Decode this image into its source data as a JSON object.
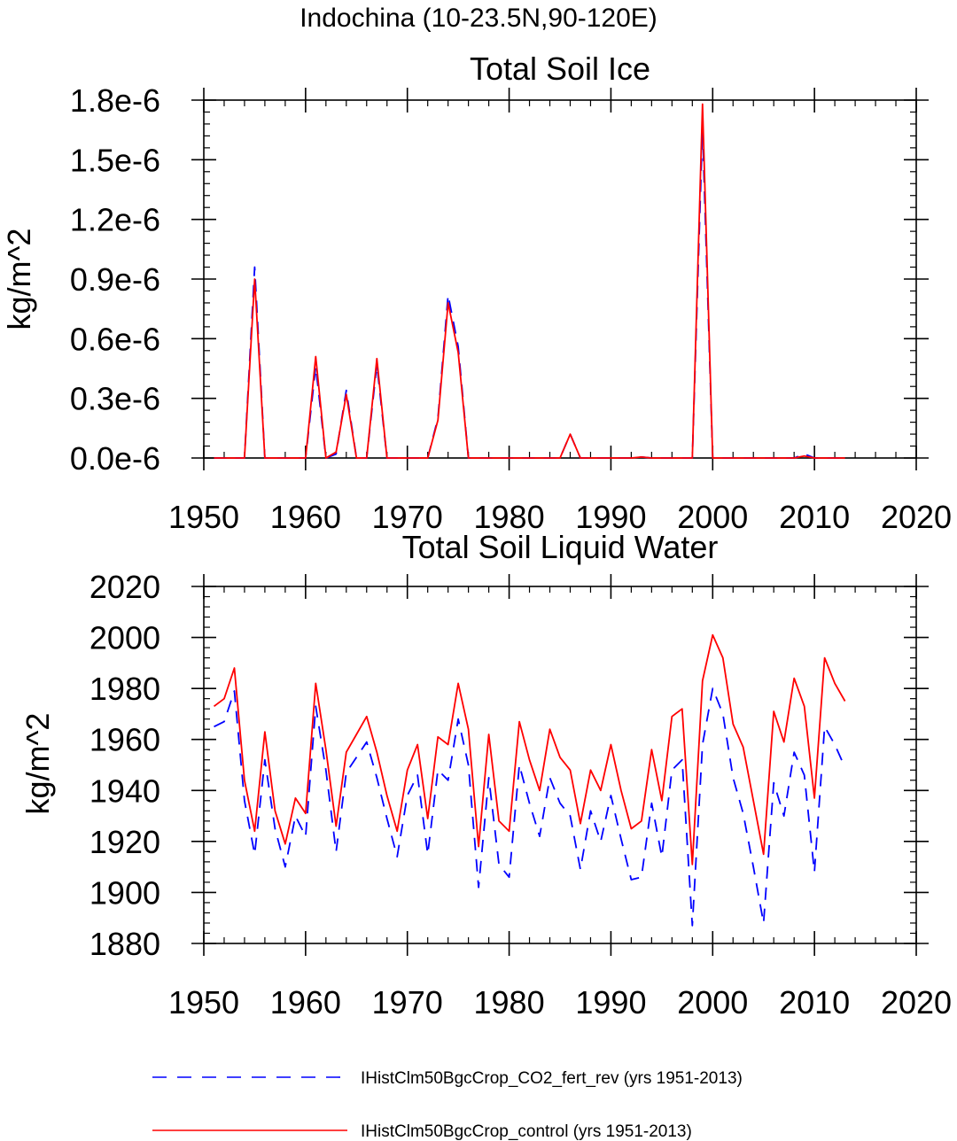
{
  "figure_title": "Indochina (10-23.5N,90-120E)",
  "legend": {
    "entries": [
      {
        "label": "IHistClm50BgcCrop_CO2_fert_rev (yrs 1951-2013)",
        "color": "#0000ff",
        "dash": "dashed"
      },
      {
        "label": "IHistClm50BgcCrop_control (yrs 1951-2013)",
        "color": "#ff0000",
        "dash": "solid"
      }
    ]
  },
  "chart_data": [
    {
      "type": "line",
      "title": "Total Soil Ice",
      "xlabel": "",
      "ylabel": "kg/m^2",
      "xlim": [
        1950,
        2020
      ],
      "ylim": [
        0,
        1.8e-06
      ],
      "xticks": [
        1950,
        1960,
        1970,
        1980,
        1990,
        2000,
        2010,
        2020
      ],
      "xtick_labels": [
        "1950",
        "1960",
        "1970",
        "1980",
        "1990",
        "2000",
        "2010",
        "2020"
      ],
      "yticks": [
        0,
        3e-07,
        6e-07,
        9e-07,
        1.2e-06,
        1.5e-06,
        1.8e-06
      ],
      "ytick_labels": [
        "0.0e-6",
        "0.3e-6",
        "0.6e-6",
        "0.9e-6",
        "1.2e-6",
        "1.5e-6",
        "1.8e-6"
      ],
      "grid": false,
      "x": [
        1951,
        1952,
        1953,
        1954,
        1955,
        1956,
        1957,
        1958,
        1959,
        1960,
        1961,
        1962,
        1963,
        1964,
        1965,
        1966,
        1967,
        1968,
        1969,
        1970,
        1971,
        1972,
        1973,
        1974,
        1975,
        1976,
        1977,
        1978,
        1979,
        1980,
        1981,
        1982,
        1983,
        1984,
        1985,
        1986,
        1987,
        1988,
        1989,
        1990,
        1991,
        1992,
        1993,
        1994,
        1995,
        1996,
        1997,
        1998,
        1999,
        2000,
        2001,
        2002,
        2003,
        2004,
        2005,
        2006,
        2007,
        2008,
        2009,
        2010,
        2011,
        2012,
        2013
      ],
      "series": [
        {
          "name": "IHistClm50BgcCrop_CO2_fert_rev (yrs 1951-2013)",
          "color": "#0000ff",
          "dash": "dashed",
          "values": [
            0,
            0,
            0,
            0,
            9.6e-07,
            0,
            0,
            0,
            0,
            0,
            4.6e-07,
            0,
            2e-08,
            3.4e-07,
            0,
            0,
            4.7e-07,
            0,
            0,
            0,
            0,
            0,
            2e-07,
            8.2e-07,
            5.6e-07,
            0,
            0,
            0,
            0,
            0,
            0,
            0,
            0,
            0,
            0,
            1.2e-07,
            0,
            0,
            0,
            0,
            0,
            0,
            5e-09,
            0,
            0,
            0,
            0,
            0,
            1.66e-06,
            0,
            0,
            0,
            0,
            0,
            0,
            0,
            0,
            0,
            2e-08,
            0,
            0,
            0,
            0
          ]
        },
        {
          "name": "IHistClm50BgcCrop_control (yrs 1951-2013)",
          "color": "#ff0000",
          "dash": "solid",
          "values": [
            0,
            0,
            0,
            0,
            9e-07,
            0,
            0,
            0,
            0,
            0,
            5.1e-07,
            0,
            3e-08,
            3.2e-07,
            0,
            0,
            5e-07,
            0,
            0,
            0,
            0,
            0,
            1.9e-07,
            7.8e-07,
            5.3e-07,
            0,
            0,
            0,
            0,
            0,
            0,
            0,
            0,
            0,
            0,
            1.2e-07,
            0,
            0,
            0,
            0,
            0,
            0,
            5e-09,
            0,
            0,
            0,
            0,
            0,
            1.78e-06,
            0,
            0,
            0,
            0,
            0,
            0,
            0,
            0,
            0,
            1e-08,
            0,
            0,
            0,
            0
          ]
        }
      ]
    },
    {
      "type": "line",
      "title": "Total Soil Liquid Water",
      "xlabel": "",
      "ylabel": "kg/m^2",
      "xlim": [
        1950,
        2020
      ],
      "ylim": [
        1880,
        2020
      ],
      "xticks": [
        1950,
        1960,
        1970,
        1980,
        1990,
        2000,
        2010,
        2020
      ],
      "xtick_labels": [
        "1950",
        "1960",
        "1970",
        "1980",
        "1990",
        "2000",
        "2010",
        "2020"
      ],
      "yticks": [
        1880,
        1900,
        1920,
        1940,
        1960,
        1980,
        2000,
        2020
      ],
      "ytick_labels": [
        "1880",
        "1900",
        "1920",
        "1940",
        "1960",
        "1980",
        "2000",
        "2020"
      ],
      "grid": false,
      "x": [
        1951,
        1952,
        1953,
        1954,
        1955,
        1956,
        1957,
        1958,
        1959,
        1960,
        1961,
        1962,
        1963,
        1964,
        1965,
        1966,
        1967,
        1968,
        1969,
        1970,
        1971,
        1972,
        1973,
        1974,
        1975,
        1976,
        1977,
        1978,
        1979,
        1980,
        1981,
        1982,
        1983,
        1984,
        1985,
        1986,
        1987,
        1988,
        1989,
        1990,
        1991,
        1992,
        1993,
        1994,
        1995,
        1996,
        1997,
        1998,
        1999,
        2000,
        2001,
        2002,
        2003,
        2004,
        2005,
        2006,
        2007,
        2008,
        2009,
        2010,
        2011,
        2012,
        2013
      ],
      "series": [
        {
          "name": "IHistClm50BgcCrop_CO2_fert_rev (yrs 1951-2013)",
          "color": "#0000ff",
          "dash": "dashed",
          "values": [
            1965,
            1967,
            1979,
            1936,
            1915,
            1952,
            1925,
            1910,
            1930,
            1922,
            1973,
            1948,
            1916,
            1947,
            1953,
            1959,
            1945,
            1929,
            1914,
            1938,
            1946,
            1915,
            1948,
            1944,
            1968,
            1950,
            1902,
            1945,
            1911,
            1906,
            1950,
            1935,
            1922,
            1945,
            1935,
            1930,
            1909,
            1932,
            1920,
            1938,
            1921,
            1905,
            1906,
            1935,
            1914,
            1948,
            1952,
            1887,
            1958,
            1980,
            1970,
            1945,
            1931,
            1910,
            1888,
            1943,
            1930,
            1955,
            1946,
            1908,
            1965,
            1958,
            1949
          ]
        },
        {
          "name": "IHistClm50BgcCrop_control (yrs 1951-2013)",
          "color": "#ff0000",
          "dash": "solid",
          "values": [
            1973,
            1976,
            1988,
            1944,
            1924,
            1963,
            1932,
            1919,
            1937,
            1931,
            1982,
            1956,
            1926,
            1955,
            1962,
            1969,
            1955,
            1938,
            1924,
            1948,
            1958,
            1929,
            1961,
            1958,
            1982,
            1964,
            1918,
            1962,
            1928,
            1924,
            1967,
            1952,
            1940,
            1964,
            1953,
            1948,
            1927,
            1948,
            1940,
            1958,
            1940,
            1925,
            1928,
            1956,
            1936,
            1969,
            1972,
            1911,
            1983,
            2001,
            1992,
            1966,
            1957,
            1936,
            1915,
            1971,
            1959,
            1984,
            1973,
            1937,
            1992,
            1982,
            1975
          ]
        }
      ]
    }
  ]
}
